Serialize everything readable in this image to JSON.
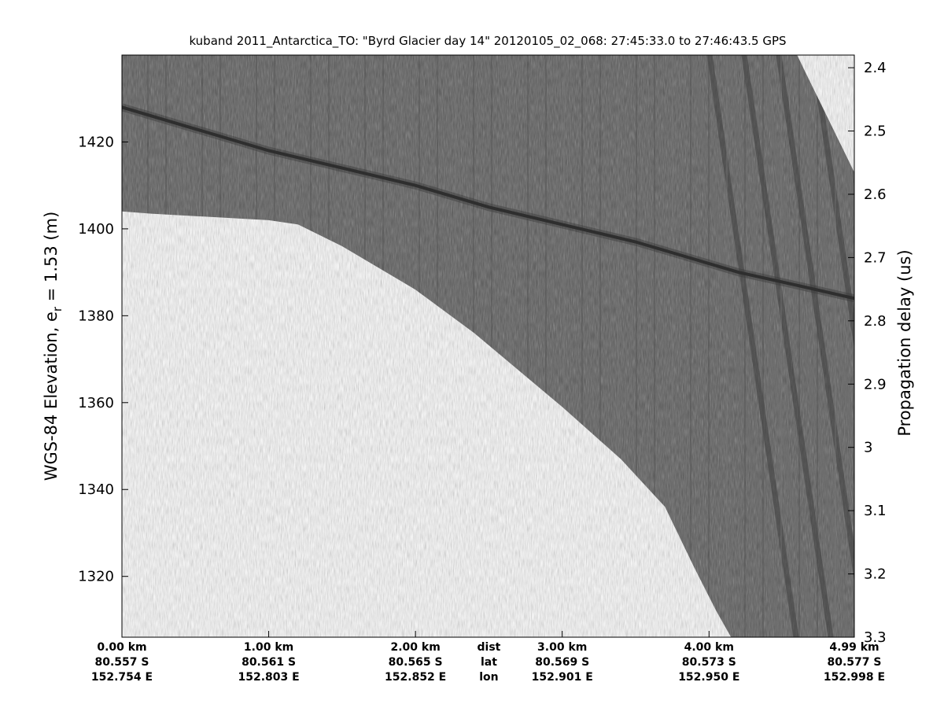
{
  "chart_data": {
    "type": "heatmap",
    "title": "kuband 2011_Antarctica_TO: \"Byrd Glacier day 14\"  20120105_02_068: 27:45:33.0 to 27:46:43.5 GPS",
    "ylabel": "WGS-84 Elevation, e",
    "ylabel_subscript": "r",
    "ylabel_suffix": " = 1.53 (m)",
    "ylabel_right": "Propagation delay (us)",
    "ylim": [
      1306,
      1440
    ],
    "ylim_right": [
      3.3,
      2.38
    ],
    "y_ticks": [
      1320,
      1340,
      1360,
      1380,
      1400,
      1420
    ],
    "y_ticks_right": [
      "2.4",
      "2.5",
      "2.6",
      "2.7",
      "2.8",
      "2.9",
      "3",
      "3.1",
      "3.2",
      "3.3"
    ],
    "xlim_km": [
      0,
      4.99
    ],
    "x_ticks": [
      {
        "km": 0,
        "dist": "0.00 km",
        "lat": "80.557 S",
        "lon": "152.754 E"
      },
      {
        "km": 1,
        "dist": "1.00 km",
        "lat": "80.561 S",
        "lon": "152.803 E"
      },
      {
        "km": 2,
        "dist": "2.00 km",
        "lat": "80.565 S",
        "lon": "152.852 E"
      },
      {
        "km": 3,
        "dist": "3.00 km",
        "lat": "80.569 S",
        "lon": "152.901 E"
      },
      {
        "km": 4,
        "dist": "4.00 km",
        "lat": "80.573 S",
        "lon": "152.950 E"
      },
      {
        "km": 4.99,
        "dist": "4.99 km",
        "lat": "80.577 S",
        "lon": "152.998 E"
      }
    ],
    "row_labels": {
      "km": 2.5,
      "dist": "dist",
      "lat": "lat",
      "lon": "lon"
    },
    "surface_elevation": {
      "km": [
        0,
        0.5,
        1.0,
        1.5,
        2.0,
        2.5,
        3.0,
        3.5,
        3.8,
        4.2,
        4.6,
        4.99
      ],
      "m": [
        1428,
        1423,
        1418,
        1414,
        1410,
        1405,
        1401,
        1397,
        1394,
        1390,
        1387,
        1384
      ]
    },
    "data_top_edge": {
      "km": [
        0,
        4.6,
        4.99
      ],
      "m": [
        1440,
        1440,
        1413
      ]
    },
    "data_bottom_edge": {
      "km": [
        0,
        0.2,
        1.0,
        1.2,
        1.5,
        2.0,
        2.4,
        3.0,
        3.4,
        3.7,
        3.9,
        4.05,
        4.15,
        4.99
      ],
      "m": [
        1404,
        1403.5,
        1402,
        1401,
        1396,
        1386,
        1376,
        1359,
        1347,
        1336,
        1322,
        1312,
        1306,
        1306
      ]
    },
    "colors": {
      "radar_background": "#5a5a5a",
      "empty_region": "#ffffff",
      "axis": "#000000"
    }
  }
}
